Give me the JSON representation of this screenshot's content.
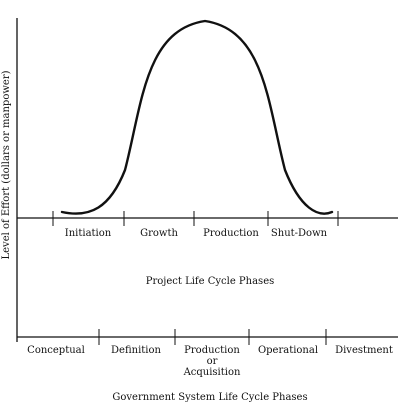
{
  "y_axis_label": "Level of Effort (dollars or manpower)",
  "project": {
    "phases": [
      "Initiation",
      "Growth",
      "Production",
      "Shut-Down"
    ],
    "caption": "Project Life Cycle Phases"
  },
  "government": {
    "phases": [
      "Conceptual",
      "Definition",
      "Production",
      "Operational",
      "Divestment"
    ],
    "production_extra": [
      "or",
      "Acquisition"
    ],
    "caption": "Government System Life Cycle Phases"
  }
}
